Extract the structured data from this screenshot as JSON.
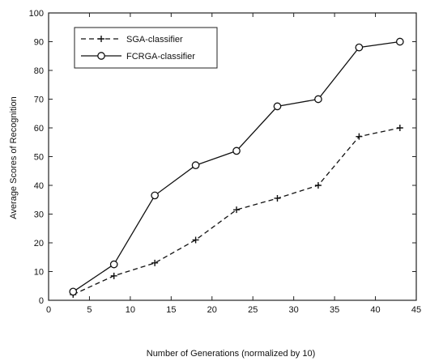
{
  "chart_data": {
    "type": "line",
    "xlabel": "Number of Generations (normalized by 10)",
    "ylabel": "Average Scores of Recognition",
    "xlim": [
      0,
      45
    ],
    "ylim": [
      0,
      100
    ],
    "xticks": [
      0,
      5,
      10,
      15,
      20,
      25,
      30,
      35,
      40,
      45
    ],
    "yticks": [
      0,
      10,
      20,
      30,
      40,
      50,
      60,
      70,
      80,
      90,
      100
    ],
    "grid": false,
    "legend_position": "top-left",
    "series": [
      {
        "name": "SGA-classifier",
        "style": "dashed",
        "marker": "plus",
        "x": [
          3,
          8,
          13,
          18,
          23,
          28,
          33,
          38,
          43
        ],
        "y": [
          2,
          8.5,
          13,
          21,
          31.5,
          35.5,
          40,
          57,
          60
        ]
      },
      {
        "name": "FCRGA-classifier",
        "style": "solid",
        "marker": "circle",
        "x": [
          3,
          8,
          13,
          18,
          23,
          28,
          33,
          38,
          43
        ],
        "y": [
          3,
          12.5,
          36.5,
          47,
          52,
          67.5,
          70,
          88,
          90
        ]
      }
    ]
  }
}
